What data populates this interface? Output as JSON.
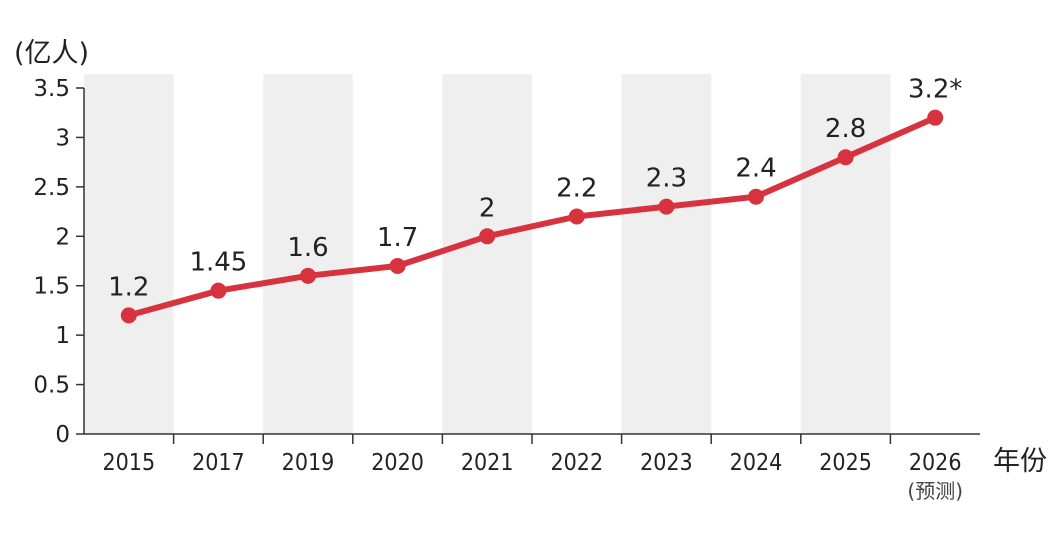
{
  "chart_data": {
    "type": "line",
    "ylabel": "(亿人)",
    "xlabel": "年份",
    "categories": [
      "2015",
      "2017",
      "2019",
      "2020",
      "2021",
      "2022",
      "2023",
      "2024",
      "2025",
      "2026"
    ],
    "category_sublabels": [
      "",
      "",
      "",
      "",
      "",
      "",
      "",
      "",
      "",
      "(预测)"
    ],
    "values": [
      1.2,
      1.45,
      1.6,
      1.7,
      2,
      2.2,
      2.3,
      2.4,
      2.8,
      3.2
    ],
    "value_labels": [
      "1.2",
      "1.45",
      "1.6",
      "1.7",
      "2",
      "2.2",
      "2.3",
      "2.4",
      "2.8",
      "3.2*"
    ],
    "y_ticks": [
      "0",
      "0.5",
      "1",
      "1.5",
      "2",
      "2.5",
      "3",
      "3.5"
    ],
    "ylim": [
      0,
      3.5
    ],
    "grid": false,
    "alternating_column_bands": true,
    "line_color": "#d7333f",
    "band_color": "#efefef"
  }
}
